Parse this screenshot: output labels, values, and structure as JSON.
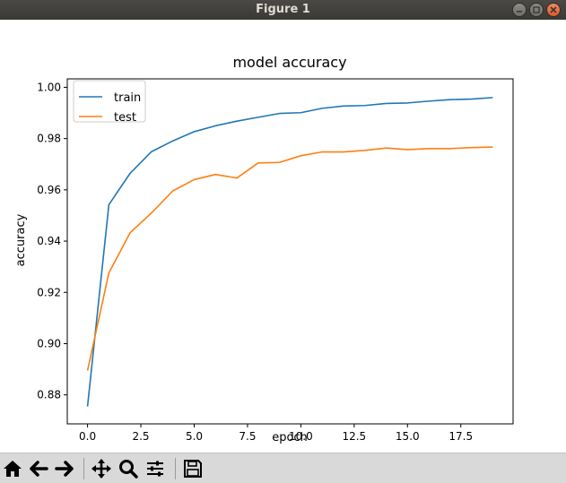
{
  "window": {
    "title": "Figure 1"
  },
  "toolbar": {
    "buttons": [
      "home-icon",
      "back-arrow-icon",
      "forward-arrow-icon",
      "pan-icon",
      "zoom-icon",
      "subplots-icon",
      "save-icon"
    ]
  },
  "chart_data": {
    "type": "line",
    "title": "model accuracy",
    "xlabel": "epoch",
    "ylabel": "accuracy",
    "xlim": [
      -0.95,
      19.95
    ],
    "ylim": [
      0.8687,
      1.0033
    ],
    "xticks": [
      0.0,
      2.5,
      5.0,
      7.5,
      10.0,
      12.5,
      15.0,
      17.5
    ],
    "xtick_labels": [
      "0.0",
      "2.5",
      "5.0",
      "7.5",
      "10.0",
      "12.5",
      "15.0",
      "17.5"
    ],
    "yticks": [
      0.88,
      0.9,
      0.92,
      0.94,
      0.96,
      0.98,
      1.0
    ],
    "ytick_labels": [
      "0.88",
      "0.90",
      "0.92",
      "0.94",
      "0.96",
      "0.98",
      "1.00"
    ],
    "grid": false,
    "legend": "upper-left",
    "x": [
      0,
      1,
      2,
      3,
      4,
      5,
      6,
      7,
      8,
      9,
      10,
      11,
      12,
      13,
      14,
      15,
      16,
      17,
      18,
      19
    ],
    "series": [
      {
        "name": "train",
        "color": "#1f77b4",
        "values": [
          0.8755,
          0.9542,
          0.9665,
          0.9749,
          0.9791,
          0.9827,
          0.985,
          0.9868,
          0.9883,
          0.9898,
          0.9901,
          0.9918,
          0.9927,
          0.9929,
          0.9937,
          0.9939,
          0.9946,
          0.9952,
          0.9954,
          0.996
        ]
      },
      {
        "name": "test",
        "color": "#ff7f0e",
        "values": [
          0.8895,
          0.9276,
          0.9433,
          0.951,
          0.9596,
          0.964,
          0.966,
          0.9646,
          0.9705,
          0.9707,
          0.9733,
          0.9748,
          0.9748,
          0.9754,
          0.9763,
          0.9757,
          0.9761,
          0.9761,
          0.9765,
          0.9767
        ]
      }
    ]
  }
}
